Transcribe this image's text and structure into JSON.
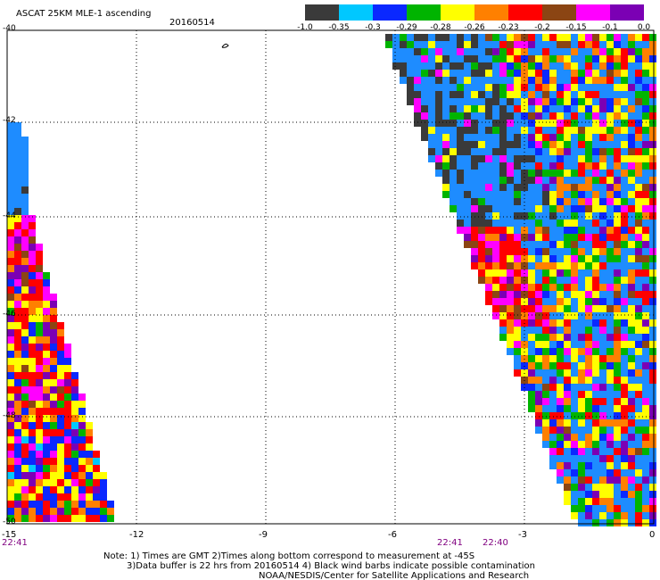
{
  "header": {
    "title": "ASCAT 25KM MLE-1 ascending",
    "date": "20160514"
  },
  "legend": {
    "colors": [
      "#3a3a3a",
      "#00c8ff",
      "#0a28ff",
      "#00b400",
      "#ffff00",
      "#ff8000",
      "#ff0000",
      "#8b4513",
      "#ff00ff",
      "#7b00b4"
    ],
    "labels": [
      "-1.0",
      "-0.35",
      "-0.3",
      "-0.29",
      "-0.28",
      "-0.26",
      "-0.23",
      "-0.2",
      "-0.15",
      "-0.1",
      "0.0"
    ]
  },
  "axes": {
    "x_ticks": [
      "-15",
      "-12",
      "-9",
      "-6",
      "-3",
      "0"
    ],
    "y_ticks": [
      "-40",
      "-42",
      "-44",
      "-46",
      "-48",
      "-50"
    ]
  },
  "times": {
    "left": "22:41",
    "mid1": "22:41",
    "mid2": "22:40"
  },
  "notes": {
    "line1": "Note: 1) Times are GMT 2)Times along bottom correspond to measurement at -45S",
    "line2": "3)Data buffer is 22 hrs from 20160514 4) Black wind barbs indicate possible contamination",
    "credit": "NOAA/NESDIS/Center for Satellite Applications and Research"
  }
}
